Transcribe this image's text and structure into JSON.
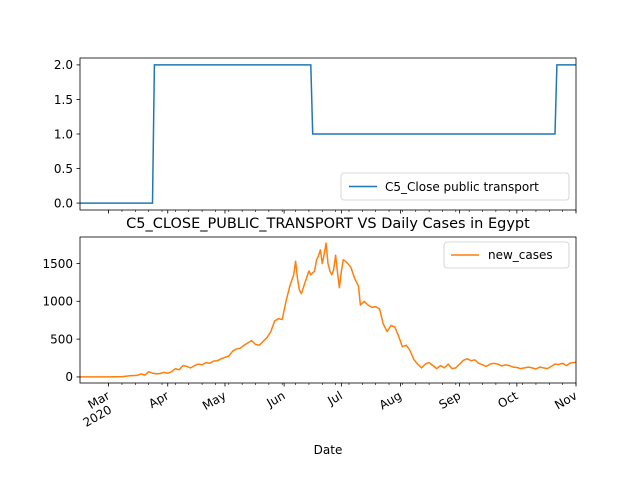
{
  "chart_data": [
    {
      "type": "line",
      "title": "",
      "xlabel": "",
      "ylabel": "",
      "xlim": [
        "2020-02-15",
        "2020-11-01"
      ],
      "ylim": [
        -0.1,
        2.1
      ],
      "yticks": [
        "0.0",
        "0.5",
        "1.0",
        "1.5",
        "2.0"
      ],
      "grid": false,
      "legend": "lower-right",
      "series": [
        {
          "name": "C5_Close public transport",
          "color": "#1f77b4",
          "points": [
            [
              "2020-02-15",
              0
            ],
            [
              "2020-03-24",
              0
            ],
            [
              "2020-03-25",
              2
            ],
            [
              "2020-06-15",
              2
            ],
            [
              "2020-06-16",
              1
            ],
            [
              "2020-10-21",
              1
            ],
            [
              "2020-10-22",
              2
            ],
            [
              "2020-11-01",
              2
            ]
          ]
        }
      ]
    },
    {
      "type": "line",
      "title": "C5_CLOSE_PUBLIC_TRANSPORT VS Daily Cases in Egypt",
      "xlabel": "Date",
      "ylabel": "",
      "xlim": [
        "2020-02-15",
        "2020-11-01"
      ],
      "ylim": [
        -80,
        1850
      ],
      "yticks": [
        "0",
        "500",
        "1000",
        "1500"
      ],
      "xticks": [
        {
          "date": "2020-03-01",
          "label": "Mar",
          "sublabel": "2020"
        },
        {
          "date": "2020-04-01",
          "label": "Apr"
        },
        {
          "date": "2020-05-01",
          "label": "May"
        },
        {
          "date": "2020-06-01",
          "label": "Jun"
        },
        {
          "date": "2020-07-01",
          "label": "Jul"
        },
        {
          "date": "2020-08-01",
          "label": "Aug"
        },
        {
          "date": "2020-09-01",
          "label": "Sep"
        },
        {
          "date": "2020-10-01",
          "label": "Oct"
        },
        {
          "date": "2020-11-01",
          "label": "Nov"
        }
      ],
      "grid": false,
      "legend": "top-right",
      "series": [
        {
          "name": "new_cases",
          "color": "#ff7f0e",
          "points": [
            [
              "2020-02-15",
              0
            ],
            [
              "2020-03-01",
              1
            ],
            [
              "2020-03-08",
              5
            ],
            [
              "2020-03-12",
              15
            ],
            [
              "2020-03-16",
              20
            ],
            [
              "2020-03-18",
              40
            ],
            [
              "2020-03-20",
              25
            ],
            [
              "2020-03-22",
              70
            ],
            [
              "2020-03-24",
              50
            ],
            [
              "2020-03-26",
              40
            ],
            [
              "2020-03-28",
              45
            ],
            [
              "2020-03-30",
              60
            ],
            [
              "2020-04-01",
              50
            ],
            [
              "2020-04-03",
              70
            ],
            [
              "2020-04-05",
              110
            ],
            [
              "2020-04-07",
              95
            ],
            [
              "2020-04-09",
              150
            ],
            [
              "2020-04-11",
              140
            ],
            [
              "2020-04-13",
              120
            ],
            [
              "2020-04-15",
              150
            ],
            [
              "2020-04-17",
              170
            ],
            [
              "2020-04-19",
              160
            ],
            [
              "2020-04-21",
              190
            ],
            [
              "2020-04-23",
              180
            ],
            [
              "2020-04-25",
              210
            ],
            [
              "2020-04-27",
              215
            ],
            [
              "2020-04-29",
              240
            ],
            [
              "2020-05-01",
              260
            ],
            [
              "2020-05-03",
              275
            ],
            [
              "2020-05-05",
              340
            ],
            [
              "2020-05-07",
              370
            ],
            [
              "2020-05-09",
              380
            ],
            [
              "2020-05-11",
              420
            ],
            [
              "2020-05-13",
              450
            ],
            [
              "2020-05-15",
              480
            ],
            [
              "2020-05-17",
              430
            ],
            [
              "2020-05-19",
              420
            ],
            [
              "2020-05-21",
              470
            ],
            [
              "2020-05-23",
              520
            ],
            [
              "2020-05-25",
              600
            ],
            [
              "2020-05-27",
              740
            ],
            [
              "2020-05-29",
              770
            ],
            [
              "2020-05-31",
              760
            ],
            [
              "2020-06-02",
              1000
            ],
            [
              "2020-06-04",
              1200
            ],
            [
              "2020-06-06",
              1350
            ],
            [
              "2020-06-07",
              1530
            ],
            [
              "2020-06-08",
              1300
            ],
            [
              "2020-06-09",
              1150
            ],
            [
              "2020-06-10",
              1100
            ],
            [
              "2020-06-12",
              1250
            ],
            [
              "2020-06-14",
              1400
            ],
            [
              "2020-06-15",
              1350
            ],
            [
              "2020-06-17",
              1400
            ],
            [
              "2020-06-18",
              1550
            ],
            [
              "2020-06-19",
              1600
            ],
            [
              "2020-06-20",
              1680
            ],
            [
              "2020-06-21",
              1500
            ],
            [
              "2020-06-22",
              1620
            ],
            [
              "2020-06-23",
              1770
            ],
            [
              "2020-06-24",
              1500
            ],
            [
              "2020-06-25",
              1400
            ],
            [
              "2020-06-26",
              1350
            ],
            [
              "2020-06-27",
              1420
            ],
            [
              "2020-06-28",
              1610
            ],
            [
              "2020-06-29",
              1380
            ],
            [
              "2020-06-30",
              1180
            ],
            [
              "2020-07-01",
              1400
            ],
            [
              "2020-07-02",
              1550
            ],
            [
              "2020-07-04",
              1510
            ],
            [
              "2020-07-06",
              1450
            ],
            [
              "2020-07-08",
              1300
            ],
            [
              "2020-07-10",
              1200
            ],
            [
              "2020-07-11",
              950
            ],
            [
              "2020-07-13",
              1000
            ],
            [
              "2020-07-15",
              950
            ],
            [
              "2020-07-17",
              920
            ],
            [
              "2020-07-19",
              930
            ],
            [
              "2020-07-21",
              900
            ],
            [
              "2020-07-23",
              700
            ],
            [
              "2020-07-25",
              600
            ],
            [
              "2020-07-27",
              680
            ],
            [
              "2020-07-29",
              660
            ],
            [
              "2020-07-31",
              540
            ],
            [
              "2020-08-02",
              400
            ],
            [
              "2020-08-04",
              420
            ],
            [
              "2020-08-06",
              350
            ],
            [
              "2020-08-08",
              230
            ],
            [
              "2020-08-10",
              170
            ],
            [
              "2020-08-12",
              120
            ],
            [
              "2020-08-14",
              170
            ],
            [
              "2020-08-16",
              190
            ],
            [
              "2020-08-18",
              150
            ],
            [
              "2020-08-20",
              110
            ],
            [
              "2020-08-22",
              150
            ],
            [
              "2020-08-24",
              120
            ],
            [
              "2020-08-26",
              170
            ],
            [
              "2020-08-28",
              110
            ],
            [
              "2020-08-30",
              120
            ],
            [
              "2020-09-01",
              170
            ],
            [
              "2020-09-03",
              220
            ],
            [
              "2020-09-05",
              240
            ],
            [
              "2020-09-07",
              215
            ],
            [
              "2020-09-09",
              225
            ],
            [
              "2020-09-11",
              180
            ],
            [
              "2020-09-13",
              160
            ],
            [
              "2020-09-15",
              140
            ],
            [
              "2020-09-17",
              170
            ],
            [
              "2020-09-19",
              180
            ],
            [
              "2020-09-21",
              170
            ],
            [
              "2020-09-23",
              145
            ],
            [
              "2020-09-25",
              160
            ],
            [
              "2020-09-27",
              150
            ],
            [
              "2020-09-29",
              130
            ],
            [
              "2020-10-01",
              125
            ],
            [
              "2020-10-03",
              110
            ],
            [
              "2020-10-05",
              120
            ],
            [
              "2020-10-07",
              130
            ],
            [
              "2020-10-09",
              120
            ],
            [
              "2020-10-11",
              105
            ],
            [
              "2020-10-13",
              130
            ],
            [
              "2020-10-15",
              120
            ],
            [
              "2020-10-17",
              110
            ],
            [
              "2020-10-19",
              140
            ],
            [
              "2020-10-21",
              170
            ],
            [
              "2020-10-23",
              165
            ],
            [
              "2020-10-25",
              180
            ],
            [
              "2020-10-27",
              150
            ],
            [
              "2020-10-29",
              185
            ],
            [
              "2020-11-01",
              195
            ]
          ]
        }
      ]
    }
  ]
}
